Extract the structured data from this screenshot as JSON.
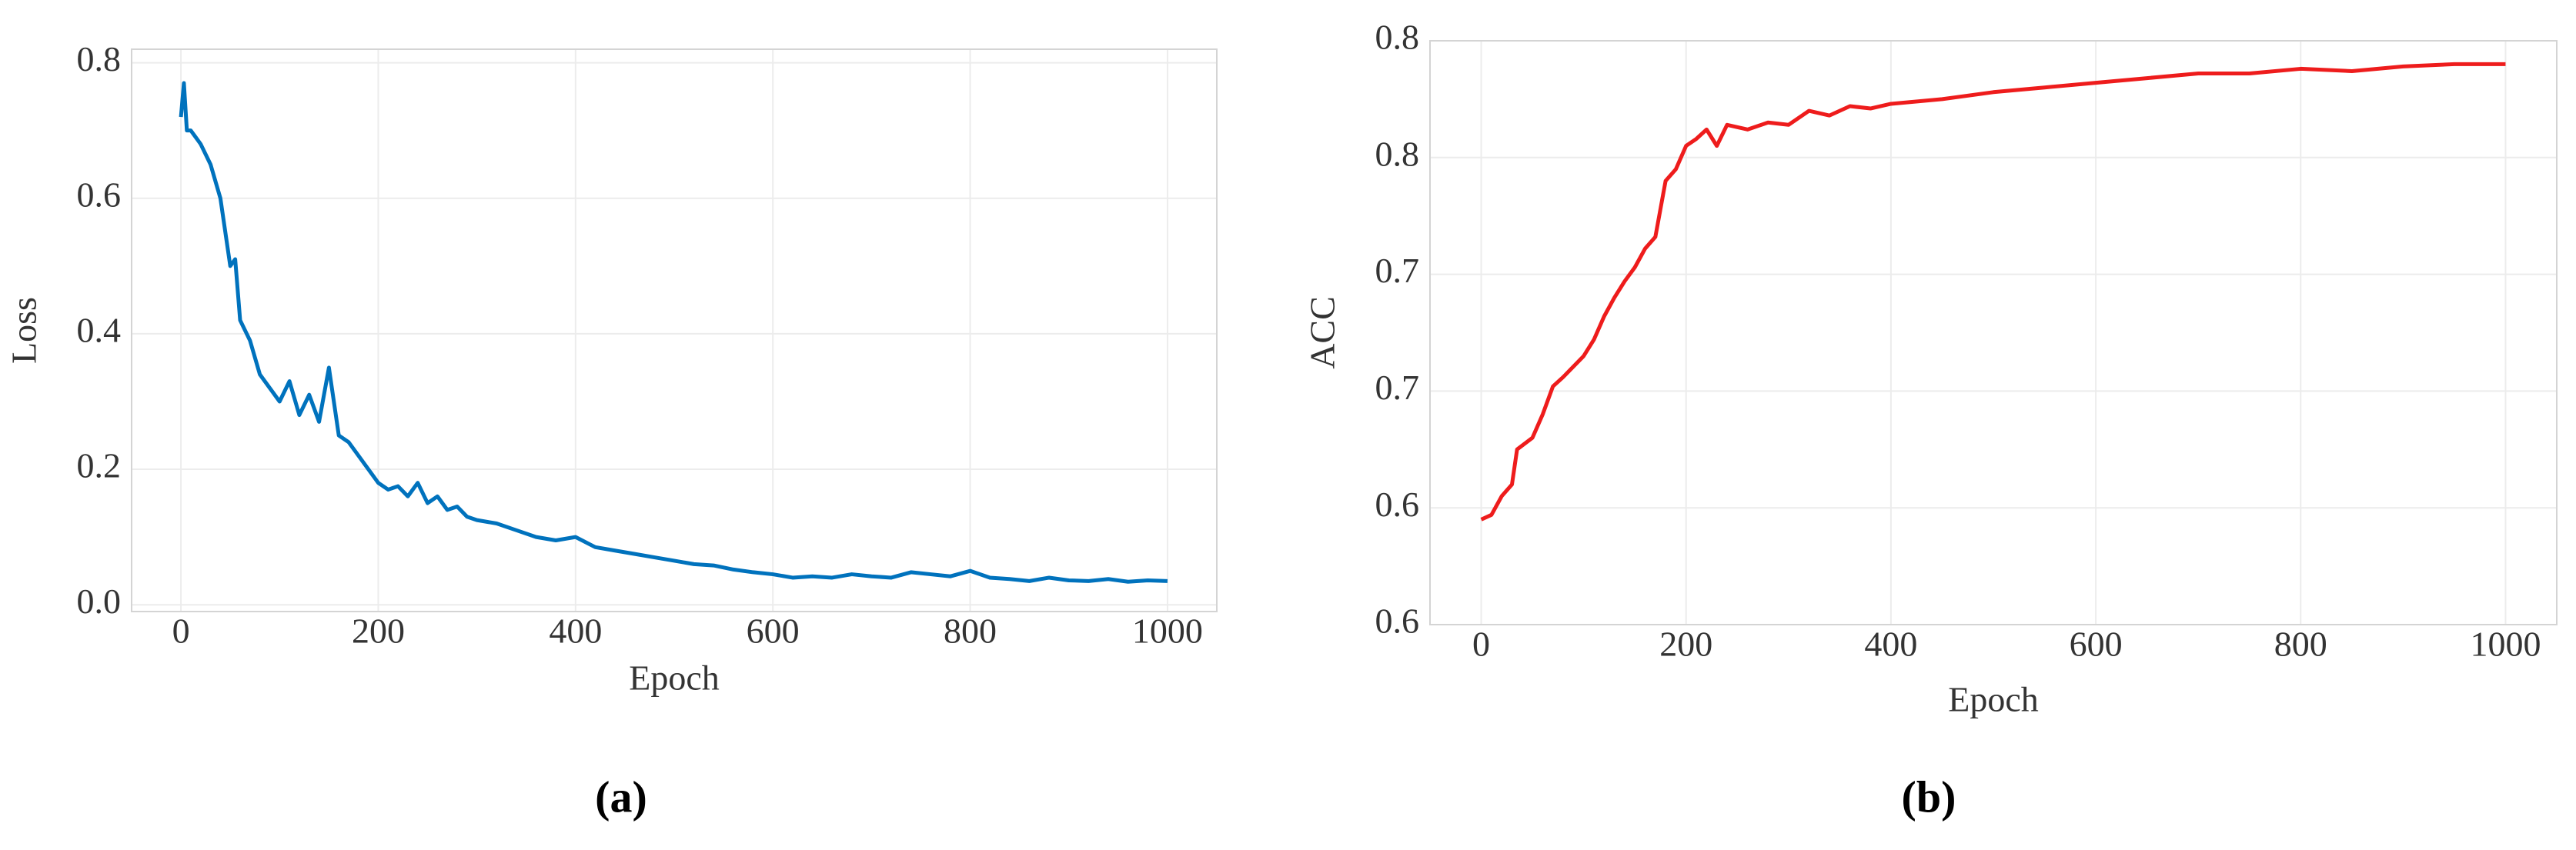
{
  "chart_data": [
    {
      "type": "line",
      "panel_label": "(a)",
      "xlabel": "Epoch",
      "ylabel": "Loss",
      "xlim": [
        -50,
        1050
      ],
      "ylim": [
        -0.01,
        0.82
      ],
      "xticks": [
        0,
        200,
        400,
        600,
        800,
        1000
      ],
      "yticks": [
        0.0,
        0.2,
        0.4,
        0.6,
        0.8
      ],
      "grid": true,
      "x": [
        0,
        3,
        6,
        10,
        20,
        30,
        40,
        50,
        55,
        60,
        70,
        80,
        90,
        100,
        110,
        120,
        130,
        140,
        150,
        160,
        170,
        180,
        190,
        200,
        210,
        220,
        230,
        240,
        250,
        260,
        270,
        280,
        290,
        300,
        320,
        340,
        360,
        380,
        400,
        420,
        440,
        460,
        480,
        500,
        520,
        540,
        560,
        580,
        600,
        620,
        640,
        660,
        680,
        700,
        720,
        740,
        760,
        780,
        800,
        820,
        840,
        860,
        880,
        900,
        920,
        940,
        960,
        980,
        1000
      ],
      "series": [
        {
          "name": "Loss",
          "color": "#0072bd",
          "values": [
            0.72,
            0.77,
            0.7,
            0.7,
            0.68,
            0.65,
            0.6,
            0.5,
            0.51,
            0.42,
            0.39,
            0.34,
            0.32,
            0.3,
            0.33,
            0.28,
            0.31,
            0.27,
            0.35,
            0.25,
            0.24,
            0.22,
            0.2,
            0.18,
            0.17,
            0.175,
            0.16,
            0.18,
            0.15,
            0.16,
            0.14,
            0.145,
            0.13,
            0.125,
            0.12,
            0.11,
            0.1,
            0.095,
            0.1,
            0.085,
            0.08,
            0.075,
            0.07,
            0.065,
            0.06,
            0.058,
            0.052,
            0.048,
            0.045,
            0.04,
            0.042,
            0.04,
            0.045,
            0.042,
            0.04,
            0.048,
            0.045,
            0.042,
            0.05,
            0.04,
            0.038,
            0.035,
            0.04,
            0.036,
            0.035,
            0.038,
            0.034,
            0.036,
            0.035
          ]
        }
      ]
    },
    {
      "type": "line",
      "panel_label": "(b)",
      "xlabel": "Epoch",
      "ylabel": "ACC",
      "xlim": [
        -50,
        1050
      ],
      "ylim": [
        0.55,
        0.8
      ],
      "xticks": [
        0,
        200,
        400,
        600,
        800,
        1000
      ],
      "yticks": [
        0.55,
        0.6,
        0.65,
        0.7,
        0.75,
        0.8
      ],
      "grid": true,
      "x": [
        0,
        10,
        20,
        30,
        35,
        50,
        60,
        70,
        80,
        100,
        110,
        120,
        130,
        140,
        150,
        160,
        170,
        180,
        190,
        200,
        210,
        220,
        230,
        240,
        260,
        280,
        300,
        320,
        340,
        360,
        380,
        400,
        450,
        500,
        550,
        600,
        650,
        700,
        750,
        800,
        850,
        900,
        950,
        1000
      ],
      "series": [
        {
          "name": "ACC",
          "color": "#ee1c1c",
          "values": [
            0.595,
            0.597,
            0.605,
            0.61,
            0.625,
            0.63,
            0.64,
            0.652,
            0.656,
            0.665,
            0.672,
            0.682,
            0.69,
            0.697,
            0.703,
            0.711,
            0.716,
            0.74,
            0.745,
            0.755,
            0.758,
            0.762,
            0.755,
            0.764,
            0.762,
            0.765,
            0.764,
            0.77,
            0.768,
            0.772,
            0.771,
            0.773,
            0.775,
            0.778,
            0.78,
            0.782,
            0.784,
            0.786,
            0.786,
            0.788,
            0.787,
            0.789,
            0.79,
            0.79
          ]
        }
      ]
    }
  ]
}
